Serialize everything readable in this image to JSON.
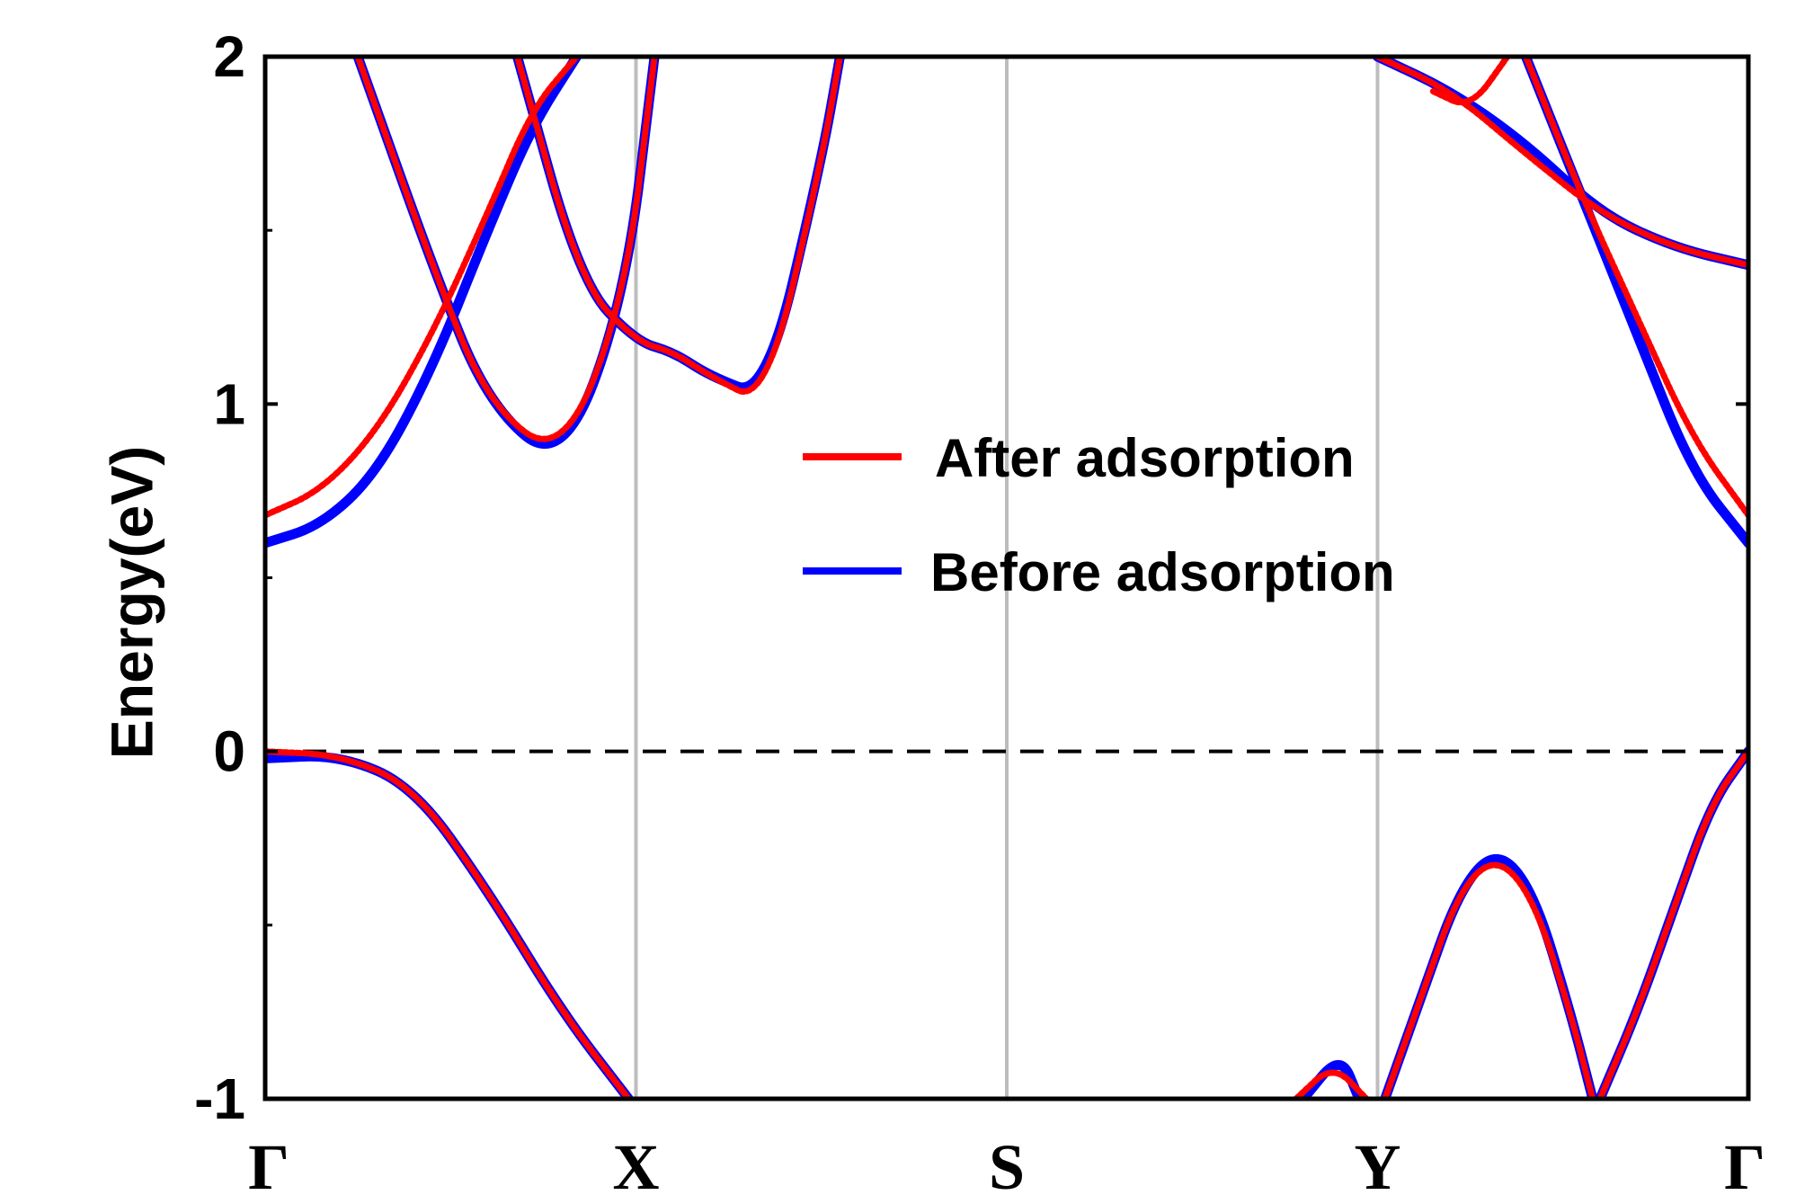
{
  "chart_data": {
    "type": "line",
    "title": "",
    "xlabel": "",
    "ylabel": "Energy(eV)",
    "ylim": [
      -1,
      2
    ],
    "yticks": [
      "2",
      "1",
      "0",
      "-1"
    ],
    "ytick_values": [
      2,
      1,
      0,
      -1
    ],
    "kpoints": [
      "Γ",
      "X",
      "S",
      "Y",
      "Γ"
    ],
    "kpoint_positions": [
      0,
      1,
      2,
      3,
      4
    ],
    "fermi_level": 0,
    "grid": false,
    "legend_position": "center",
    "legend": [
      "After adsorption",
      "Before adsorption"
    ],
    "series": [
      {
        "name": "Before adsorption",
        "color": "#0000ff",
        "bands": [
          {
            "x": [
              0,
              0.15,
              0.3,
              0.45,
              0.6,
              0.72,
              0.84
            ],
            "y": [
              0.6,
              0.65,
              0.8,
              1.1,
              1.5,
              1.8,
              2.0
            ]
          },
          {
            "x": [
              0.25,
              0.45,
              0.6,
              0.8,
              0.97,
              1.05
            ],
            "y": [
              2.0,
              1.4,
              1.0,
              0.82,
              1.3,
              2.0
            ]
          },
          {
            "x": [
              0.68,
              0.85,
              1.0,
              1.1,
              1.2,
              1.35,
              1.5,
              1.55
            ],
            "y": [
              2.0,
              1.35,
              1.18,
              1.15,
              1.08,
              1.02,
              1.7,
              2.0
            ]
          },
          {
            "x": [
              3.0,
              3.2,
              3.4,
              3.6,
              3.8,
              4.0
            ],
            "y": [
              2.0,
              1.9,
              1.75,
              1.55,
              1.45,
              1.4
            ]
          },
          {
            "x": [
              3.4,
              3.55,
              3.7,
              3.85,
              4.0
            ],
            "y": [
              2.0,
              1.6,
              1.2,
              0.8,
              0.6
            ]
          },
          {
            "x": [
              0,
              0.2,
              0.4,
              0.6,
              0.8,
              0.98
            ],
            "y": [
              -0.02,
              -0.01,
              -0.1,
              -0.4,
              -0.75,
              -1.0
            ]
          },
          {
            "x": [
              3.02,
              3.12,
              3.22,
              3.32,
              3.42,
              3.52,
              3.58
            ],
            "y": [
              -1.0,
              -0.7,
              -0.4,
              -0.28,
              -0.4,
              -0.75,
              -1.0
            ]
          },
          {
            "x": [
              3.6,
              3.7,
              3.8,
              3.9,
              4.0
            ],
            "y": [
              -1.0,
              -0.75,
              -0.45,
              -0.15,
              0.0
            ]
          },
          {
            "x": [
              2.8,
              2.9,
              2.95
            ],
            "y": [
              -1.0,
              -0.87,
              -1.0
            ]
          }
        ]
      },
      {
        "name": "After adsorption",
        "color": "#ff0000",
        "bands": [
          {
            "x": [
              0,
              0.15,
              0.3,
              0.45,
              0.6,
              0.72,
              0.84
            ],
            "y": [
              0.68,
              0.75,
              0.92,
              1.2,
              1.55,
              1.85,
              2.0
            ]
          },
          {
            "x": [
              0.25,
              0.45,
              0.6,
              0.8,
              0.97,
              1.05
            ],
            "y": [
              2.0,
              1.4,
              1.0,
              0.84,
              1.3,
              2.0
            ]
          },
          {
            "x": [
              0.68,
              0.85,
              1.0,
              1.1,
              1.2,
              1.35,
              1.5,
              1.55
            ],
            "y": [
              2.0,
              1.35,
              1.18,
              1.15,
              1.08,
              1.0,
              1.7,
              2.0
            ]
          },
          {
            "x": [
              3.0,
              3.2,
              3.4,
              3.6,
              3.8,
              4.0
            ],
            "y": [
              2.0,
              1.9,
              1.72,
              1.55,
              1.45,
              1.4
            ]
          },
          {
            "x": [
              3.15,
              3.25,
              3.35
            ],
            "y": [
              1.9,
              1.85,
              2.0
            ]
          },
          {
            "x": [
              3.4,
              3.55,
              3.7,
              3.85,
              4.0
            ],
            "y": [
              2.0,
              1.6,
              1.25,
              0.9,
              0.68
            ]
          },
          {
            "x": [
              0,
              0.2,
              0.4,
              0.6,
              0.8,
              0.98
            ],
            "y": [
              0.0,
              -0.01,
              -0.1,
              -0.4,
              -0.75,
              -1.0
            ]
          },
          {
            "x": [
              3.02,
              3.12,
              3.22,
              3.32,
              3.42,
              3.52,
              3.58
            ],
            "y": [
              -1.0,
              -0.7,
              -0.4,
              -0.3,
              -0.42,
              -0.75,
              -1.0
            ]
          },
          {
            "x": [
              3.6,
              3.7,
              3.8,
              3.9,
              4.0
            ],
            "y": [
              -1.0,
              -0.75,
              -0.45,
              -0.15,
              0.0
            ]
          },
          {
            "x": [
              2.78,
              2.88,
              2.97
            ],
            "y": [
              -1.0,
              -0.9,
              -1.0
            ]
          }
        ]
      }
    ]
  }
}
